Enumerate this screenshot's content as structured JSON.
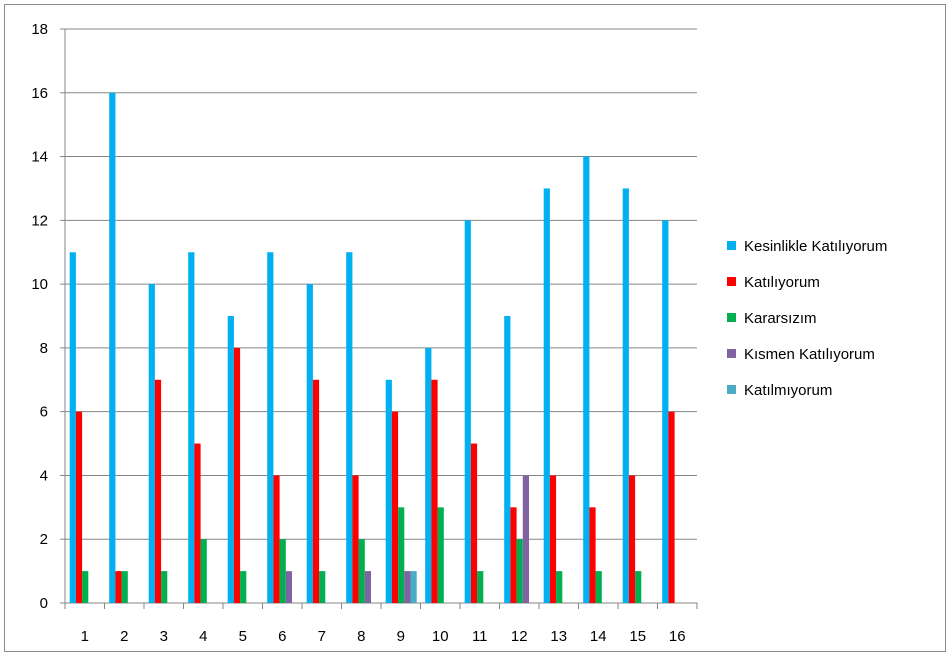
{
  "chart_data": {
    "type": "bar",
    "categories": [
      "1",
      "2",
      "3",
      "4",
      "5",
      "6",
      "7",
      "8",
      "9",
      "10",
      "11",
      "12",
      "13",
      "14",
      "15",
      "16"
    ],
    "series": [
      {
        "name": "Kesinlikle Katılıyorum",
        "color": "#00b0f0",
        "values": [
          11,
          16,
          10,
          11,
          9,
          11,
          10,
          11,
          7,
          8,
          12,
          9,
          13,
          14,
          13,
          12
        ]
      },
      {
        "name": "Katılıyorum",
        "color": "#ff0000",
        "values": [
          6,
          1,
          7,
          5,
          8,
          4,
          7,
          4,
          6,
          7,
          5,
          3,
          4,
          3,
          4,
          6
        ]
      },
      {
        "name": "Kararsızım",
        "color": "#00b050",
        "values": [
          1,
          1,
          1,
          2,
          1,
          2,
          1,
          2,
          3,
          3,
          1,
          2,
          1,
          1,
          1,
          0
        ]
      },
      {
        "name": "Kısmen Katılıyorum",
        "color": "#8064a2",
        "values": [
          0,
          0,
          0,
          0,
          0,
          1,
          0,
          1,
          1,
          0,
          0,
          4,
          0,
          0,
          0,
          0
        ]
      },
      {
        "name": "Katılmıyorum",
        "color": "#4bacc6",
        "values": [
          0,
          0,
          0,
          0,
          0,
          0,
          0,
          0,
          1,
          0,
          0,
          0,
          0,
          0,
          0,
          0
        ]
      }
    ],
    "ylim": [
      0,
      18
    ],
    "yticks": [
      "0",
      "2",
      "4",
      "6",
      "8",
      "10",
      "12",
      "14",
      "16",
      "18"
    ],
    "grid": true,
    "legend_position": "right",
    "title": "",
    "xlabel": "",
    "ylabel": ""
  }
}
